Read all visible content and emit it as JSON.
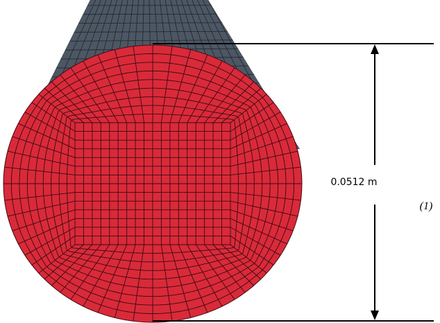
{
  "dimension": {
    "label": "0.0512 m"
  },
  "equation_number": "(1)"
}
